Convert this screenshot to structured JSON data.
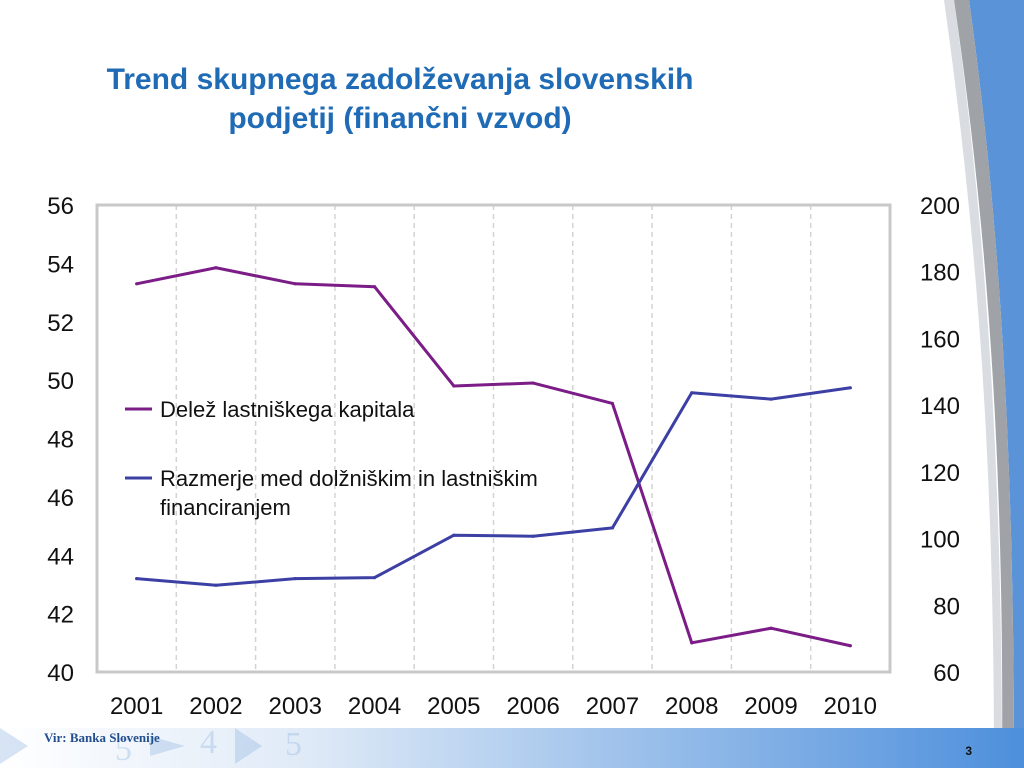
{
  "slide": {
    "title": "Trend skupnega zadolževanja slovenskih podjetij (finančni vzvod)",
    "source": "Vir: Banka Slovenije",
    "page_number": "3",
    "background_digits": [
      "5",
      "4",
      "5"
    ]
  },
  "chart_data": {
    "type": "line",
    "title": "",
    "x": [
      "2001",
      "2002",
      "2003",
      "2004",
      "2005",
      "2006",
      "2007",
      "2008",
      "2009",
      "2010"
    ],
    "y_left": {
      "min": 40,
      "max": 56,
      "ticks": [
        "40",
        "42",
        "44",
        "46",
        "48",
        "50",
        "52",
        "54",
        "56"
      ]
    },
    "y_right": {
      "min": 60,
      "max": 200,
      "ticks": [
        "60",
        "80",
        "100",
        "120",
        "140",
        "160",
        "180",
        "200"
      ]
    },
    "series": [
      {
        "name": "Delež lastniškega kapitala",
        "axis": "left",
        "color": "#7b1c87",
        "values": [
          53.3,
          53.85,
          53.3,
          53.2,
          49.8,
          49.9,
          49.2,
          41.0,
          41.5,
          40.9
        ]
      },
      {
        "name": "Razmerje med dolžniškim in lastniškim financiranjem",
        "axis": "right",
        "color": "#3c3fa3",
        "values": [
          88.0,
          86.0,
          88.0,
          88.3,
          101.0,
          100.7,
          103.2,
          143.7,
          141.8,
          145.2
        ]
      }
    ],
    "grid": {
      "vertical": true,
      "horizontal": false
    },
    "legend": {
      "placement": "middle-left"
    },
    "colors": {
      "axis_frame": "#c8c8c8",
      "grid": "#d3d3d3"
    }
  }
}
